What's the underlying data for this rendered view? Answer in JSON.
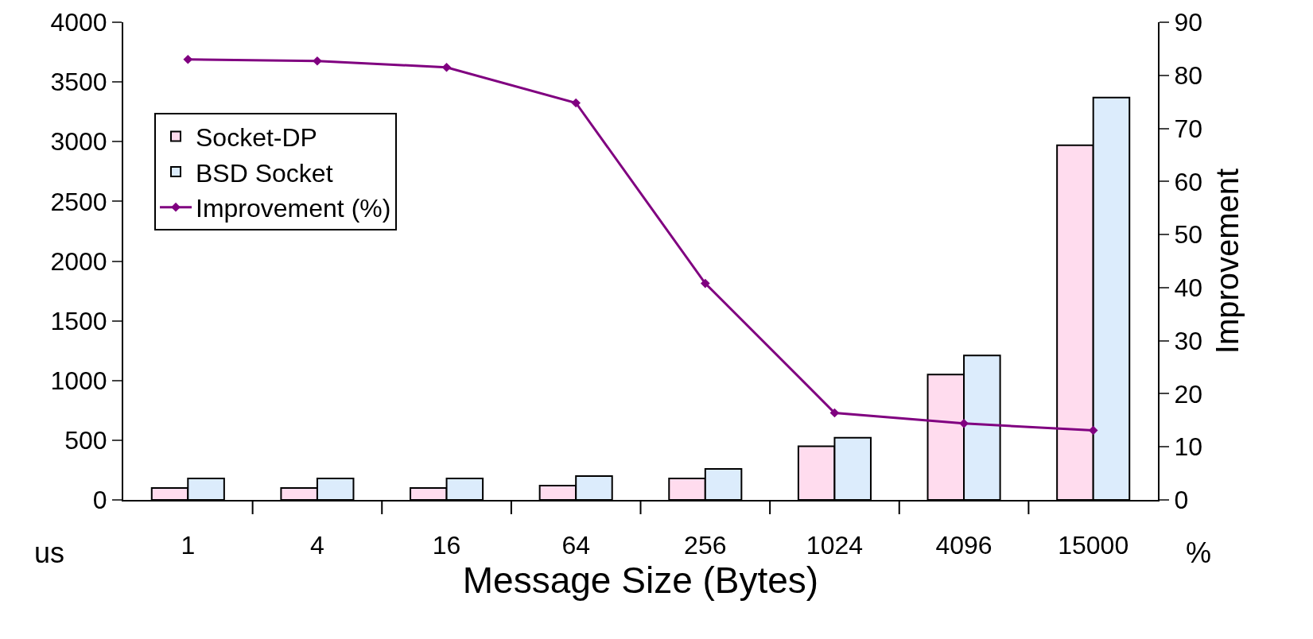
{
  "chart_data": {
    "type": "bar",
    "xlabel": "Message Size (Bytes)",
    "ylabel": "us",
    "y2label": "Improvement",
    "annotations": [
      "%"
    ],
    "categories": [
      "1",
      "4",
      "16",
      "64",
      "256",
      "1024",
      "4096",
      "15000"
    ],
    "series": [
      {
        "name": "Socket-DP",
        "color": "#ffdcee",
        "values": [
          100,
          100,
          100,
          120,
          180,
          450,
          1050,
          2970
        ]
      },
      {
        "name": "BSD Socket",
        "color": "#dcecfc",
        "values": [
          180,
          180,
          180,
          200,
          260,
          520,
          1210,
          3370
        ]
      },
      {
        "name": "Improvement (%)",
        "type": "line",
        "axis": "y2",
        "color": "#800080",
        "marker": "diamond",
        "values": [
          83.0,
          82.7,
          81.5,
          74.8,
          40.8,
          16.4,
          14.4,
          13.1
        ]
      }
    ],
    "ylim": [
      0,
      4000
    ],
    "yticks": [
      0,
      500,
      1000,
      1500,
      2000,
      2500,
      3000,
      3500,
      4000
    ],
    "y2lim": [
      0,
      90
    ],
    "y2ticks": [
      0,
      10,
      20,
      30,
      40,
      50,
      60,
      70,
      80,
      90
    ],
    "grid": false,
    "legend": "top left"
  }
}
